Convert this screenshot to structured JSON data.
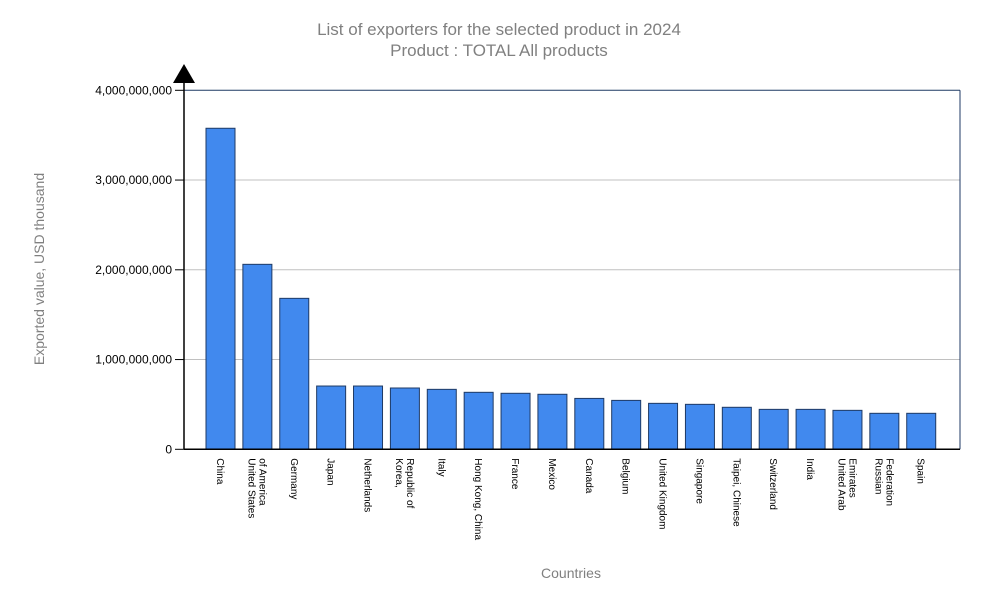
{
  "chart_data": {
    "type": "bar",
    "title": "List of exporters for the selected product in 2024",
    "subtitle": "Product : TOTAL All products",
    "xlabel": "Countries",
    "ylabel": "Exported value, USD thousand",
    "ylim": [
      0,
      4000000000
    ],
    "yticks": [
      0,
      1000000000,
      2000000000,
      3000000000,
      4000000000
    ],
    "ytick_labels": [
      "0",
      "1,000,000,000",
      "2,000,000,000",
      "3,000,000,000",
      "4,000,000,000"
    ],
    "grid": true,
    "bar_color": "#4189ee",
    "bar_border_color": "#1f3a64",
    "categories": [
      [
        "China"
      ],
      [
        "United States",
        "of America"
      ],
      [
        "Germany"
      ],
      [
        "Japan"
      ],
      [
        "Netherlands"
      ],
      [
        "Korea,",
        "Republic of"
      ],
      [
        "Italy"
      ],
      [
        "Hong Kong, China"
      ],
      [
        "France"
      ],
      [
        "Mexico"
      ],
      [
        "Canada"
      ],
      [
        "Belgium"
      ],
      [
        "United Kingdom"
      ],
      [
        "Singapore"
      ],
      [
        "Taipei, Chinese"
      ],
      [
        "Switzerland"
      ],
      [
        "India"
      ],
      [
        "United Arab",
        "Emirates"
      ],
      [
        "Russian",
        "Federation"
      ],
      [
        "Spain"
      ]
    ],
    "values": [
      3577000000,
      2061000000,
      1682000000,
      705000000,
      705000000,
      683000000,
      668000000,
      635000000,
      624000000,
      613000000,
      567000000,
      545000000,
      512000000,
      501000000,
      468000000,
      445000000,
      445000000,
      434000000,
      401000000,
      401000000
    ]
  }
}
